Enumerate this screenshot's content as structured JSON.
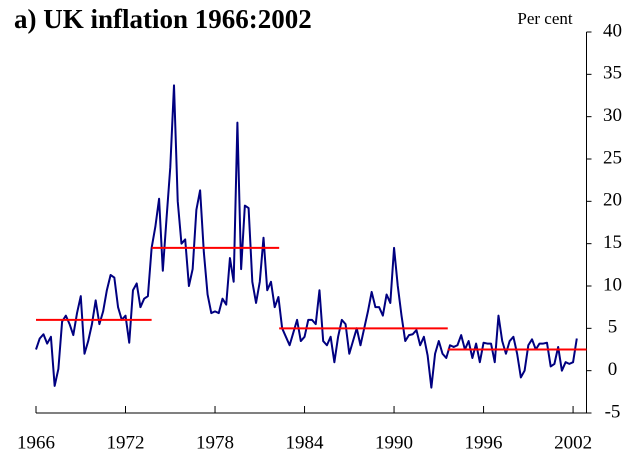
{
  "chart_data": {
    "type": "line",
    "title": "a) UK inflation 1966:2002",
    "y_label": "Per cent",
    "x": [
      1966,
      1966.25,
      1966.5,
      1966.75,
      1967,
      1967.25,
      1967.5,
      1967.75,
      1968,
      1968.25,
      1968.5,
      1968.75,
      1969,
      1969.25,
      1969.5,
      1969.75,
      1970,
      1970.25,
      1970.5,
      1970.75,
      1971,
      1971.25,
      1971.5,
      1971.75,
      1972,
      1972.25,
      1972.5,
      1972.75,
      1973,
      1973.25,
      1973.5,
      1973.75,
      1974,
      1974.25,
      1974.5,
      1974.75,
      1975,
      1975.25,
      1975.5,
      1975.75,
      1976,
      1976.25,
      1976.5,
      1976.75,
      1977,
      1977.25,
      1977.5,
      1977.75,
      1978,
      1978.25,
      1978.5,
      1978.75,
      1979,
      1979.25,
      1979.5,
      1979.75,
      1980,
      1980.25,
      1980.5,
      1980.75,
      1981,
      1981.25,
      1981.5,
      1981.75,
      1982,
      1982.25,
      1982.5,
      1982.75,
      1983,
      1983.25,
      1983.5,
      1983.75,
      1984,
      1984.25,
      1984.5,
      1984.75,
      1985,
      1985.25,
      1985.5,
      1985.75,
      1986,
      1986.25,
      1986.5,
      1986.75,
      1987,
      1987.25,
      1987.5,
      1987.75,
      1988,
      1988.25,
      1988.5,
      1988.75,
      1989,
      1989.25,
      1989.5,
      1989.75,
      1990,
      1990.25,
      1990.5,
      1990.75,
      1991,
      1991.25,
      1991.5,
      1991.75,
      1992,
      1992.25,
      1992.5,
      1992.75,
      1993,
      1993.25,
      1993.5,
      1993.75,
      1994,
      1994.25,
      1994.5,
      1994.75,
      1995,
      1995.25,
      1995.5,
      1995.75,
      1996,
      1996.25,
      1996.5,
      1996.75,
      1997,
      1997.25,
      1997.5,
      1997.75,
      1998,
      1998.25,
      1998.5,
      1998.75,
      1999,
      1999.25,
      1999.5,
      1999.75,
      2000,
      2000.25,
      2000.5,
      2000.75,
      2001,
      2001.25,
      2001.5,
      2001.75,
      2002,
      2002.25
    ],
    "series": [
      {
        "color": "#000080",
        "values": [
          2.5,
          3.8,
          4.3,
          3.2,
          4,
          -1.8,
          0.2,
          5.8,
          6.5,
          5.5,
          4.2,
          6.8,
          8.8,
          2,
          3.5,
          5.5,
          8.3,
          5.5,
          7,
          9.5,
          11.3,
          11,
          7.5,
          6,
          6.5,
          3.3,
          9.5,
          10.3,
          7.5,
          8.5,
          8.8,
          14.5,
          17,
          20.3,
          11.8,
          18,
          24,
          33.7,
          20,
          15,
          15.5,
          10,
          12,
          19,
          21.3,
          14,
          9,
          6.8,
          7,
          6.8,
          8.5,
          7.8,
          13.3,
          10.5,
          29.3,
          12,
          19.5,
          19.2,
          10.5,
          8,
          10.5,
          15.7,
          9.5,
          10.5,
          7.5,
          8.7,
          5,
          4,
          3,
          4.5,
          6,
          3.5,
          4,
          6,
          6,
          5.5,
          9.5,
          3.5,
          3,
          4,
          1,
          4,
          6,
          5.5,
          2,
          3.5,
          5,
          3,
          5,
          7,
          9.3,
          7.5,
          7.5,
          6.5,
          9,
          8,
          14.5,
          10,
          6.5,
          3.5,
          4.2,
          4.3,
          4.8,
          3,
          4,
          1.8,
          -2,
          2,
          3.5,
          2,
          1.5,
          3,
          2.8,
          3,
          4.2,
          2.5,
          3.5,
          1.5,
          3.2,
          1,
          3.3,
          3.2,
          3.2,
          1,
          6.5,
          3.5,
          2,
          3.5,
          4,
          2,
          -0.8,
          0,
          3,
          3.7,
          2.5,
          3.2,
          3.2,
          3.3,
          0.5,
          0.8,
          2.8,
          0,
          1,
          0.8,
          1,
          3.8
        ]
      }
    ],
    "segments": [
      {
        "color": "#ff0000",
        "x": [
          1966,
          1973.75
        ],
        "value": 6
      },
      {
        "color": "#ff0000",
        "x": [
          1973.75,
          1982.3
        ],
        "value": 14.5
      },
      {
        "color": "#ff0000",
        "x": [
          1982.3,
          1993.6
        ],
        "value": 5
      },
      {
        "color": "#ff0000",
        "x": [
          1993.6,
          2002.9
        ],
        "value": 2.5
      }
    ],
    "xlim": [
      1966,
      2002.9
    ],
    "xticks": [
      1966,
      1972,
      1978,
      1984,
      1990,
      1996,
      2002
    ],
    "ylim": [
      -5,
      40
    ],
    "yticks": [
      -5,
      0,
      5,
      10,
      15,
      20,
      25,
      30,
      35,
      40
    ],
    "y_axis_side": "right"
  }
}
